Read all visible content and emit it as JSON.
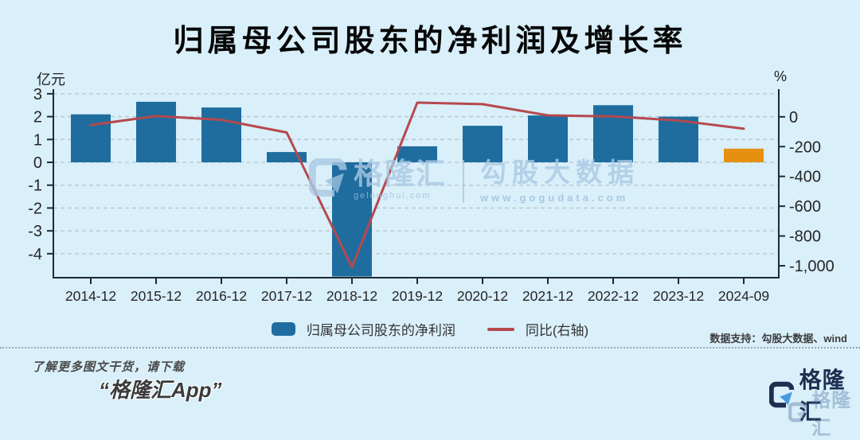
{
  "page": {
    "title": "归属母公司股东的净利润及增长率",
    "bg_color": "#d9effa"
  },
  "chart": {
    "left_axis_unit": "亿元",
    "right_axis_unit": "%",
    "source_note": "数据支持：勾股大数据、wind"
  },
  "chart_data": {
    "type": "bar+line combo",
    "title": "归属母公司股东的净利润及增长率",
    "categories": [
      "2014-12",
      "2015-12",
      "2016-12",
      "2017-12",
      "2018-12",
      "2019-12",
      "2020-12",
      "2021-12",
      "2022-12",
      "2023-12",
      "2024-09"
    ],
    "series": [
      {
        "name": "归属母公司股东的净利润",
        "type": "bar",
        "axis": "left",
        "unit": "亿元",
        "values": [
          2.1,
          2.65,
          2.4,
          0.45,
          -5.0,
          0.7,
          1.6,
          2.05,
          2.5,
          2.0,
          0.6
        ]
      },
      {
        "name": "同比(右轴)",
        "type": "line",
        "axis": "right",
        "unit": "%",
        "values": [
          -55,
          5,
          -20,
          -105,
          -1010,
          95,
          85,
          10,
          3,
          -25,
          -80
        ]
      }
    ],
    "left_ylim": [
      -5.05,
      3.1
    ],
    "left_ticks": [
      3,
      2,
      1,
      0,
      -1,
      -2,
      -3,
      -4
    ],
    "left_tick_labels": [
      "3",
      "2",
      "1",
      "0",
      "-1",
      "-2",
      "-3",
      "-4"
    ],
    "right_ylim": [
      -1080,
      170
    ],
    "right_ticks": [
      0,
      -200,
      -400,
      -600,
      -800,
      -1000
    ],
    "right_tick_labels": [
      "0",
      "-200",
      "-400",
      "-600",
      "-800",
      "-1,000"
    ],
    "grid": "horizontal dashed lines at left-axis ticks",
    "legend_position": "bottom",
    "colors": {
      "bar": "#1e6d9e",
      "bar_highlight": "#e69010",
      "highlight_index": 10,
      "line": "#b5494e",
      "axis": "#1c2a38",
      "grid": "#b7c5cf",
      "tick_text": "#262626"
    }
  },
  "legend": {
    "items": [
      {
        "label": "归属母公司股东的净利润",
        "swatch": "bar",
        "color": "#1e6d9e"
      },
      {
        "label": "同比(右轴)",
        "swatch": "line",
        "color": "#b5494e"
      }
    ]
  },
  "watermark": {
    "brand": "格隆汇",
    "brand_url": "gelonghui.com",
    "name": "勾股大数据",
    "site": "www.gogudata.com"
  },
  "footer": {
    "promo_line1": "了解更多图文干货，请下载",
    "promo_line2": "“格隆汇App”",
    "brand": "格隆汇"
  }
}
